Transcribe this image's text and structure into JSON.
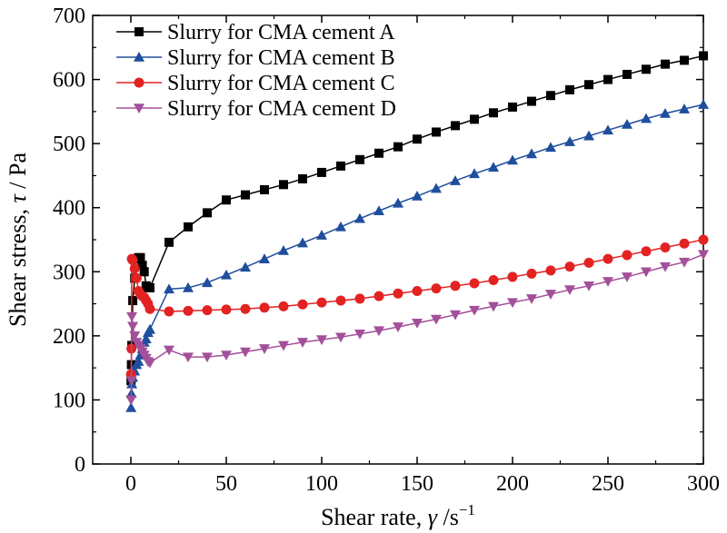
{
  "chart_data": {
    "type": "line",
    "xlabel": {
      "prefix": "Shear rate, ",
      "symbol": "γ",
      "unit": " /s",
      "sup": "−1"
    },
    "ylabel": {
      "prefix": "Shear stress, ",
      "symbol": "τ",
      "unit": " / Pa"
    },
    "xlim": [
      -20,
      300
    ],
    "ylim": [
      0,
      700
    ],
    "xticks": [
      0,
      50,
      100,
      150,
      200,
      250,
      300
    ],
    "yticks": [
      0,
      100,
      200,
      300,
      400,
      500,
      600,
      700
    ],
    "grid": false,
    "legend": "top-left",
    "series": [
      {
        "name": "Slurry for CMA cement A",
        "color": "#000000",
        "marker": "square",
        "x": [
          0.1,
          0.3,
          0.5,
          1,
          2,
          3,
          4,
          5,
          6,
          7,
          8,
          9,
          10,
          20,
          30,
          40,
          50,
          60,
          70,
          80,
          90,
          100,
          110,
          120,
          130,
          140,
          150,
          160,
          170,
          180,
          190,
          200,
          210,
          220,
          230,
          240,
          250,
          260,
          270,
          280,
          290,
          300
        ],
        "y": [
          130,
          155,
          185,
          255,
          290,
          320,
          322,
          322,
          310,
          300,
          278,
          275,
          275,
          346,
          370,
          392,
          412,
          420,
          428,
          436,
          445,
          455,
          465,
          475,
          485,
          495,
          507,
          518,
          528,
          538,
          548,
          557,
          566,
          575,
          584,
          592,
          600,
          608,
          616,
          624,
          630,
          637
        ]
      },
      {
        "name": "Slurry for CMA cement B",
        "color": "#1f4e9c",
        "marker": "triangle-up",
        "x": [
          0.1,
          0.3,
          0.5,
          1,
          2,
          3,
          4,
          5,
          6,
          7,
          8,
          9,
          10,
          20,
          30,
          40,
          50,
          60,
          70,
          80,
          90,
          100,
          110,
          120,
          130,
          140,
          150,
          160,
          170,
          180,
          190,
          200,
          210,
          220,
          230,
          240,
          250,
          260,
          270,
          280,
          290,
          300
        ],
        "y": [
          88,
          110,
          125,
          135,
          145,
          155,
          160,
          170,
          180,
          190,
          195,
          205,
          210,
          273,
          275,
          283,
          295,
          307,
          320,
          333,
          345,
          357,
          370,
          383,
          395,
          407,
          418,
          430,
          442,
          453,
          463,
          474,
          484,
          494,
          503,
          512,
          521,
          530,
          539,
          547,
          554,
          561
        ]
      },
      {
        "name": "Slurry for CMA cement C",
        "color": "#e32222",
        "marker": "circle",
        "x": [
          0.1,
          0.3,
          0.5,
          1,
          2,
          3,
          4,
          5,
          6,
          7,
          8,
          9,
          10,
          20,
          30,
          40,
          50,
          60,
          70,
          80,
          90,
          100,
          110,
          120,
          130,
          140,
          150,
          160,
          170,
          180,
          190,
          200,
          210,
          220,
          230,
          240,
          250,
          260,
          270,
          280,
          290,
          300
        ],
        "y": [
          140,
          180,
          320,
          318,
          305,
          290,
          270,
          265,
          262,
          260,
          255,
          250,
          242,
          238,
          239,
          240,
          241,
          242,
          244,
          246,
          249,
          252,
          255,
          258,
          262,
          266,
          270,
          274,
          278,
          282,
          287,
          292,
          297,
          302,
          308,
          314,
          320,
          326,
          332,
          338,
          344,
          350
        ]
      },
      {
        "name": "Slurry for CMA cement D",
        "color": "#a3509a",
        "marker": "triangle-down",
        "x": [
          0.1,
          0.3,
          0.5,
          1,
          2,
          3,
          4,
          5,
          6,
          7,
          8,
          9,
          10,
          20,
          30,
          40,
          50,
          60,
          70,
          80,
          90,
          100,
          110,
          120,
          130,
          140,
          150,
          160,
          170,
          180,
          190,
          200,
          210,
          220,
          230,
          240,
          250,
          260,
          270,
          280,
          290,
          300
        ],
        "y": [
          100,
          130,
          230,
          215,
          200,
          190,
          185,
          180,
          175,
          170,
          165,
          160,
          158,
          178,
          167,
          167,
          170,
          175,
          180,
          185,
          190,
          194,
          198,
          203,
          208,
          214,
          220,
          226,
          233,
          240,
          246,
          252,
          258,
          265,
          272,
          278,
          285,
          292,
          300,
          308,
          315,
          327
        ]
      }
    ]
  }
}
